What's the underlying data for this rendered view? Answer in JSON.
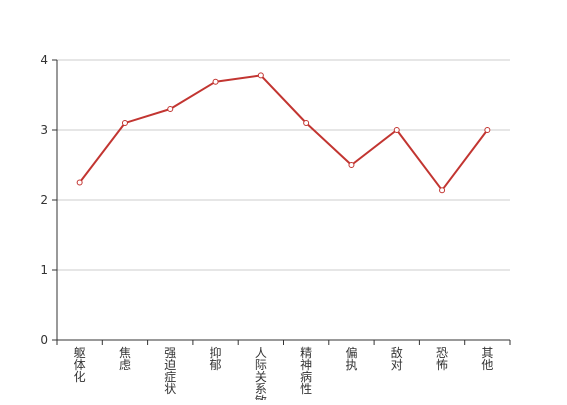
{
  "chart_data": {
    "type": "line",
    "title": "",
    "xlabel": "",
    "ylabel": "",
    "categories": [
      "躯体化",
      "焦虑",
      "强迫症状",
      "抑郁",
      "人际关系敏感",
      "精神病性",
      "偏执",
      "敌对",
      "恐怖",
      "其他"
    ],
    "series": [
      {
        "values": [
          2.25,
          3.1,
          3.3,
          3.69,
          3.78,
          3.1,
          2.5,
          3.0,
          2.14,
          3.0
        ]
      }
    ],
    "ylim": [
      0,
      4
    ],
    "yticks": [
      0,
      1,
      2,
      3,
      4
    ],
    "grid": true,
    "legend": "none",
    "colors": {
      "line": "#c23531",
      "grid": "#cccccc",
      "axis": "#333333",
      "marker_fill": "#ffffff"
    }
  }
}
